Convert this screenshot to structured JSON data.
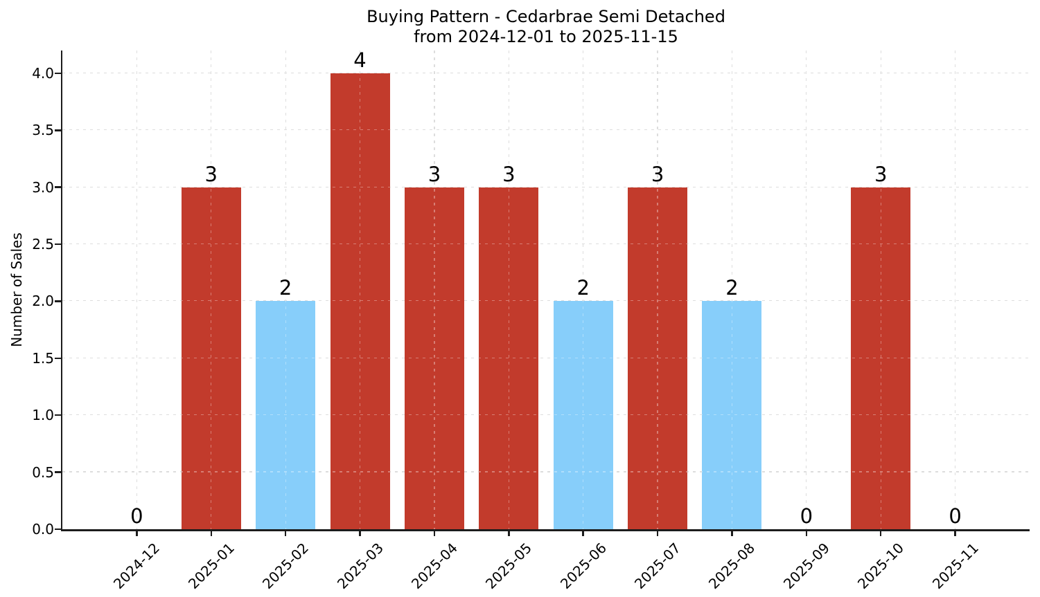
{
  "chart_data": {
    "type": "bar",
    "title": "Buying Pattern - Cedarbrae Semi Detached",
    "subtitle": "from 2024-12-01 to 2025-11-15",
    "xlabel": "",
    "ylabel": "Number of Sales",
    "categories": [
      "2024-12",
      "2025-01",
      "2025-02",
      "2025-03",
      "2025-04",
      "2025-05",
      "2025-06",
      "2025-07",
      "2025-08",
      "2025-09",
      "2025-10",
      "2025-11"
    ],
    "values": [
      0,
      3,
      2,
      4,
      3,
      3,
      2,
      3,
      2,
      0,
      3,
      0
    ],
    "bar_value_labels": [
      "0",
      "3",
      "2",
      "4",
      "3",
      "3",
      "2",
      "3",
      "2",
      "0",
      "3",
      "0"
    ],
    "bar_colors": [
      "#c23b2c",
      "#c23b2c",
      "#87cefa",
      "#c23b2c",
      "#c23b2c",
      "#c23b2c",
      "#87cefa",
      "#c23b2c",
      "#87cefa",
      "#c23b2c",
      "#c23b2c",
      "#c23b2c"
    ],
    "yticks": [
      0,
      0.5,
      1,
      1.5,
      2,
      2.5,
      3,
      3.5,
      4
    ],
    "ytick_labels": [
      "0.0",
      "0.5",
      "1.0",
      "1.5",
      "2.0",
      "2.5",
      "3.0",
      "3.5",
      "4.0"
    ],
    "ylim": [
      0,
      4.2
    ],
    "grid": {
      "visible": true,
      "axes": "both",
      "style": "dashed",
      "color": "#cbcbcb",
      "drawn_over_bars": true
    },
    "legend": null,
    "colors": {
      "bar_high": "#c23b2c",
      "bar_low": "#87cefa",
      "axis": "#1c1c1c",
      "text": "#000000",
      "background": "#ffffff"
    }
  }
}
